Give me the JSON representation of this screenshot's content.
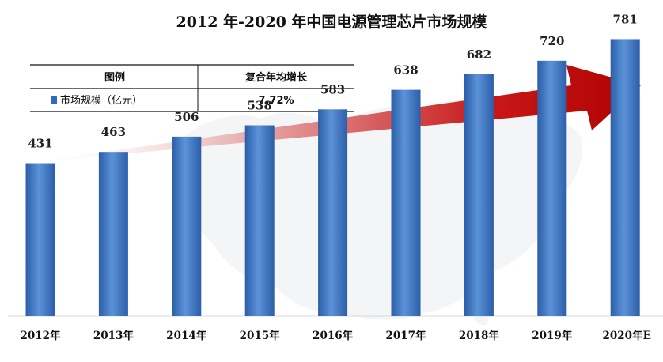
{
  "chart_data": {
    "type": "bar",
    "title": "2012 年-2020 年中国电源管理芯片市场规模",
    "categories": [
      "2012年",
      "2013年",
      "2014年",
      "2015年",
      "2016年",
      "2017年",
      "2018年",
      "2019年",
      "2020年E"
    ],
    "series": [
      {
        "name": "市场规模（亿元）",
        "values": [
          431,
          463,
          506,
          538,
          583,
          638,
          682,
          720,
          781
        ]
      }
    ],
    "data_labels": [
      "431",
      "463",
      "506",
      "538",
      "583",
      "638",
      "682",
      "720",
      "781"
    ],
    "ylim": [
      0,
      880
    ],
    "xlabel": "",
    "ylabel": "",
    "grid": false,
    "legend": {
      "position": "top-left",
      "header_col1": "图例",
      "header_col2": "复合年均增长",
      "series_label": "市场规模（亿元）",
      "cagr": "7.72%"
    },
    "colors": {
      "bar_light": "#5b93d8",
      "bar_dark": "#2b5ea8",
      "arrow": "#c00000",
      "marker": "#2f6cbf"
    }
  }
}
